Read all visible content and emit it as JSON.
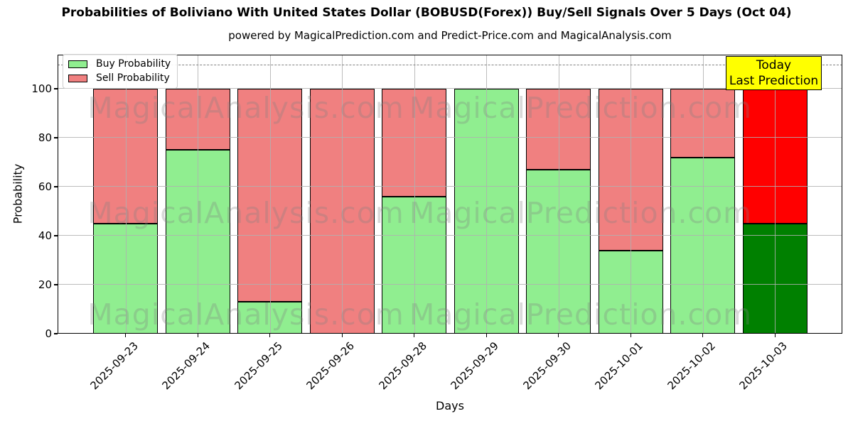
{
  "title": "Probabilities of Boliviano With United States Dollar (BOBUSD(Forex)) Buy/Sell Signals Over 5 Days (Oct 04)",
  "subtitle": "powered by MagicalPrediction.com and Predict-Price.com and MagicalAnalysis.com",
  "axes": {
    "xlabel": "Days",
    "ylabel": "Probability",
    "yticks": [
      0,
      20,
      40,
      60,
      80,
      100
    ],
    "ylim": [
      0,
      114
    ],
    "dashed_line_y": 110,
    "grid": true
  },
  "legend": {
    "position": "upper left",
    "items": [
      {
        "label": "Buy Probability",
        "color": "#90EE90"
      },
      {
        "label": "Sell Probability",
        "color": "#F08080"
      }
    ]
  },
  "annotation": {
    "lines": [
      "Today",
      "Last Prediction"
    ],
    "bg_color": "#FFFF00",
    "border_color": "#000000"
  },
  "watermarks": {
    "left_text": "MagicalAnalysis.com",
    "right_text": "MagicalPrediction.com"
  },
  "chart_data": {
    "type": "bar",
    "stacked": true,
    "title": "Probabilities of Boliviano With United States Dollar (BOBUSD(Forex)) Buy/Sell Signals Over 5 Days (Oct 04)",
    "xlabel": "Days",
    "ylabel": "Probability",
    "ylim": [
      0,
      114
    ],
    "grid": true,
    "legend_position": "upper left",
    "categories": [
      "2025-09-23",
      "2025-09-24",
      "2025-09-25",
      "2025-09-26",
      "2025-09-28",
      "2025-09-29",
      "2025-09-30",
      "2025-10-01",
      "2025-10-02",
      "2025-10-03"
    ],
    "series": [
      {
        "name": "Buy Probability",
        "values": [
          45,
          75,
          13,
          0,
          56,
          100,
          67,
          34,
          72,
          45
        ],
        "colors": [
          "#90EE90",
          "#90EE90",
          "#90EE90",
          "#90EE90",
          "#90EE90",
          "#90EE90",
          "#90EE90",
          "#90EE90",
          "#90EE90",
          "#008000"
        ]
      },
      {
        "name": "Sell Probability",
        "values": [
          55,
          25,
          87,
          100,
          44,
          0,
          33,
          66,
          28,
          55
        ],
        "colors": [
          "#F08080",
          "#F08080",
          "#F08080",
          "#F08080",
          "#F08080",
          "#F08080",
          "#F08080",
          "#F08080",
          "#F08080",
          "#FF0000"
        ]
      }
    ],
    "bar_edge_color": "#000000",
    "grid_color": "#b0b0b0",
    "dashed_line_color": "#808080"
  }
}
